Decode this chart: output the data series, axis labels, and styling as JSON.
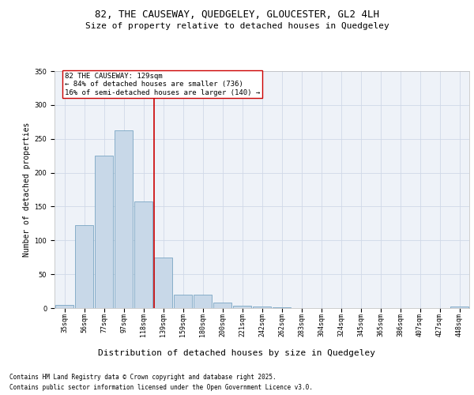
{
  "title": "82, THE CAUSEWAY, QUEDGELEY, GLOUCESTER, GL2 4LH",
  "subtitle": "Size of property relative to detached houses in Quedgeley",
  "xlabel": "Distribution of detached houses by size in Quedgeley",
  "ylabel": "Number of detached properties",
  "categories": [
    "35sqm",
    "56sqm",
    "77sqm",
    "97sqm",
    "118sqm",
    "139sqm",
    "159sqm",
    "180sqm",
    "200sqm",
    "221sqm",
    "242sqm",
    "262sqm",
    "283sqm",
    "304sqm",
    "324sqm",
    "345sqm",
    "365sqm",
    "386sqm",
    "407sqm",
    "427sqm",
    "448sqm"
  ],
  "values": [
    5,
    122,
    225,
    262,
    157,
    75,
    20,
    20,
    8,
    4,
    2,
    1,
    0,
    0,
    0,
    0,
    0,
    0,
    0,
    0,
    2
  ],
  "bar_color": "#c8d8e8",
  "bar_edge_color": "#6699bb",
  "grid_color": "#d0d8e8",
  "bg_color": "#eef2f8",
  "red_line_x": 4.52,
  "annotation_text": "82 THE CAUSEWAY: 129sqm\n← 84% of detached houses are smaller (736)\n16% of semi-detached houses are larger (140) →",
  "annotation_box_color": "#ffffff",
  "annotation_box_edge": "#cc0000",
  "footnote1": "Contains HM Land Registry data © Crown copyright and database right 2025.",
  "footnote2": "Contains public sector information licensed under the Open Government Licence v3.0.",
  "ylim": [
    0,
    350
  ],
  "yticks": [
    0,
    50,
    100,
    150,
    200,
    250,
    300,
    350
  ],
  "title_fontsize": 9,
  "subtitle_fontsize": 8,
  "tick_fontsize": 6,
  "ylabel_fontsize": 7,
  "annot_fontsize": 6.5,
  "footnote_fontsize": 5.5
}
